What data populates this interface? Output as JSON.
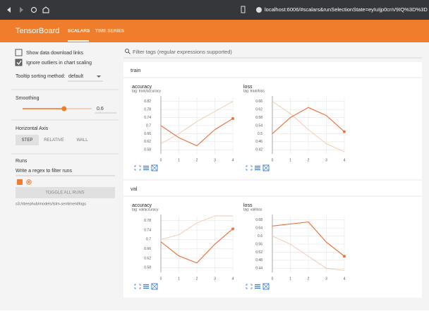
{
  "browser": {
    "url": "localhost:6006/#scalars&runSelectionState=eyIuIjp0cnV9IQ%3D%3D"
  },
  "header": {
    "title": "TensorBoard",
    "tabs": [
      "SCALARS",
      "TIME SERIES"
    ],
    "active_tab": 0
  },
  "sidebar": {
    "options": [
      {
        "label": "Show data download links",
        "checked": false
      },
      {
        "label": "Ignore outliers in chart scaling",
        "checked": true
      }
    ],
    "tooltip_label": "Tooltip sorting method:",
    "tooltip_value": "default",
    "smoothing_label": "Smoothing",
    "smoothing": 0.6,
    "axis_label": "Horizontal Axis",
    "axis_options": [
      "STEP",
      "RELATIVE",
      "WALL"
    ],
    "axis_selected": 0,
    "runs_label": "Runs",
    "runs_placeholder": "Write a regex to filter runs",
    "toggle_button": "TOGGLE ALL RUNS",
    "run_path": "s3://deephub/models/lstm-sentiment/logs"
  },
  "filter_placeholder": "Filter tags (regular expressions supported)",
  "sections": [
    {
      "name": "train",
      "charts": [
        {
          "title": "accuracy",
          "tag": "tag: train/accuracy",
          "xlim": [
            0,
            4
          ],
          "xticks": [
            0,
            1,
            2,
            3,
            4
          ],
          "ylim": [
            0.56,
            0.84
          ],
          "yticks": [
            0.58,
            0.62,
            0.66,
            0.7,
            0.74,
            0.78,
            0.82
          ],
          "series": [
            {
              "color": "#f6c6ae",
              "values": [
                0.61,
                0.66,
                0.72,
                0.77,
                0.82
              ]
            },
            {
              "color": "#ec7443",
              "values": [
                0.7,
                0.64,
                0.6,
                0.68,
                0.735
              ]
            }
          ]
        },
        {
          "title": "loss",
          "tag": "tag: train/loss",
          "xlim": [
            0,
            4
          ],
          "xticks": [
            0,
            1,
            2,
            3,
            4
          ],
          "ylim": [
            0.4,
            0.68
          ],
          "yticks": [
            0.42,
            0.46,
            0.5,
            0.54,
            0.58,
            0.62,
            0.66
          ],
          "series": [
            {
              "color": "#f6c6ae",
              "values": [
                0.66,
                0.6,
                0.52,
                0.45,
                0.41
              ]
            },
            {
              "color": "#ec7443",
              "values": [
                0.5,
                0.58,
                0.63,
                0.59,
                0.51
              ]
            }
          ]
        }
      ]
    },
    {
      "name": "val",
      "charts": [
        {
          "title": "accuracy",
          "tag": "tag: val/accuracy",
          "xlim": [
            0,
            4
          ],
          "xticks": [
            0,
            1,
            2,
            3,
            4
          ],
          "ylim": [
            0.56,
            0.8
          ],
          "yticks": [
            0.58,
            0.62,
            0.66,
            0.7,
            0.74,
            0.78
          ],
          "series": [
            {
              "color": "#f6c6ae",
              "values": [
                0.7,
                0.72,
                0.77,
                0.8,
                0.8
              ]
            },
            {
              "color": "#ec7443",
              "values": [
                0.69,
                0.63,
                0.6,
                0.68,
                0.745
              ]
            }
          ]
        },
        {
          "title": "loss",
          "tag": "tag: val/loss",
          "xlim": [
            0,
            4
          ],
          "xticks": [
            0,
            1,
            2,
            3,
            4
          ],
          "ylim": [
            0.42,
            0.7
          ],
          "yticks": [
            0.44,
            0.48,
            0.52,
            0.56,
            0.6,
            0.64,
            0.68
          ],
          "series": [
            {
              "color": "#f6c6ae",
              "values": [
                0.6,
                0.56,
                0.5,
                0.44,
                0.43
              ]
            },
            {
              "color": "#ec7443",
              "values": [
                0.65,
                0.66,
                0.67,
                0.57,
                0.5
              ]
            }
          ]
        }
      ]
    }
  ]
}
